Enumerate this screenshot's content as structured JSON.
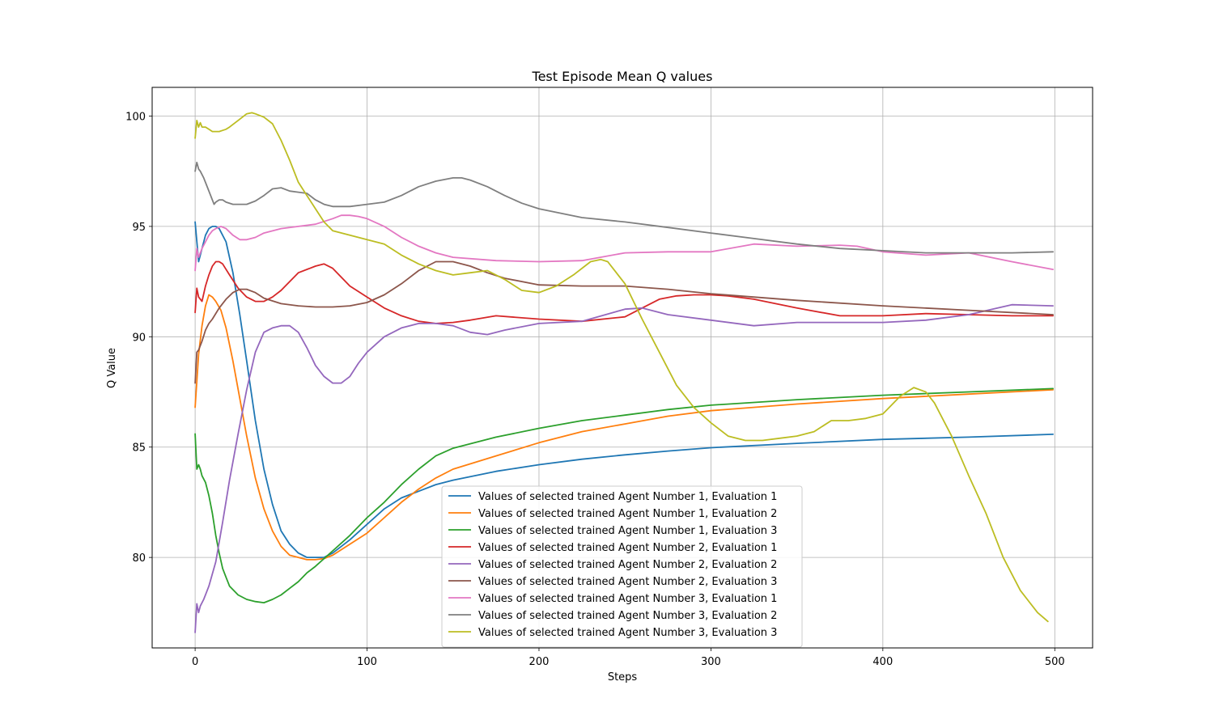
{
  "chart_data": {
    "type": "line",
    "title": "Test Episode Mean Q values",
    "xlabel": "Steps",
    "ylabel": "Q Value",
    "xlim": [
      -25,
      522
    ],
    "ylim": [
      75.9,
      101.3
    ],
    "xticks": [
      0,
      100,
      200,
      300,
      400,
      500
    ],
    "yticks": [
      80,
      85,
      90,
      95,
      100
    ],
    "xtick_labels": [
      "0",
      "100",
      "200",
      "300",
      "400",
      "500"
    ],
    "ytick_labels": [
      "80",
      "85",
      "90",
      "95",
      "100"
    ],
    "grid": true,
    "legend_position": "lower-center",
    "series": [
      {
        "name": "Values of selected trained Agent Number 1, Evaluation 1",
        "color": "#1f77b4",
        "x": [
          0,
          2,
          4,
          6,
          8,
          10,
          12,
          14,
          18,
          22,
          26,
          30,
          35,
          40,
          45,
          50,
          55,
          60,
          65,
          70,
          75,
          80,
          90,
          100,
          110,
          120,
          130,
          140,
          150,
          175,
          200,
          225,
          250,
          275,
          300,
          350,
          400,
          450,
          499
        ],
        "y": [
          95.2,
          93.4,
          94.0,
          94.6,
          94.9,
          95.0,
          95.0,
          94.9,
          94.3,
          92.9,
          91.0,
          88.9,
          86.2,
          84.0,
          82.4,
          81.2,
          80.6,
          80.2,
          80.0,
          80.0,
          80.0,
          80.2,
          80.8,
          81.5,
          82.2,
          82.7,
          83.0,
          83.3,
          83.5,
          83.9,
          84.2,
          84.45,
          84.65,
          84.82,
          84.97,
          85.17,
          85.35,
          85.45,
          85.58
        ]
      },
      {
        "name": "Values of selected trained Agent Number 1, Evaluation 2",
        "color": "#ff7f0e",
        "x": [
          0,
          2,
          4,
          6,
          8,
          10,
          12,
          15,
          18,
          22,
          26,
          30,
          35,
          40,
          45,
          50,
          55,
          60,
          65,
          70,
          75,
          80,
          90,
          100,
          110,
          120,
          130,
          140,
          150,
          175,
          200,
          225,
          250,
          275,
          300,
          350,
          400,
          450,
          499
        ],
        "y": [
          86.8,
          89.2,
          90.5,
          91.4,
          91.9,
          91.8,
          91.6,
          91.2,
          90.4,
          88.9,
          87.2,
          85.5,
          83.6,
          82.2,
          81.2,
          80.5,
          80.1,
          80.0,
          79.9,
          79.9,
          79.95,
          80.1,
          80.6,
          81.1,
          81.8,
          82.5,
          83.1,
          83.6,
          84.0,
          84.6,
          85.2,
          85.7,
          86.05,
          86.4,
          86.65,
          86.95,
          87.2,
          87.4,
          87.6
        ]
      },
      {
        "name": "Values of selected trained Agent Number 1, Evaluation 3",
        "color": "#2ca02c",
        "x": [
          0,
          1,
          2,
          3,
          4,
          6,
          8,
          10,
          12,
          14,
          16,
          18,
          20,
          25,
          30,
          35,
          40,
          45,
          50,
          55,
          60,
          65,
          70,
          80,
          90,
          100,
          110,
          120,
          130,
          140,
          150,
          175,
          200,
          225,
          250,
          275,
          300,
          350,
          400,
          450,
          499
        ],
        "y": [
          85.6,
          84.0,
          84.2,
          84.0,
          83.7,
          83.4,
          82.8,
          82.0,
          81.0,
          80.2,
          79.5,
          79.1,
          78.7,
          78.3,
          78.1,
          78.0,
          77.95,
          78.1,
          78.3,
          78.6,
          78.9,
          79.3,
          79.6,
          80.3,
          81.0,
          81.8,
          82.5,
          83.3,
          84.0,
          84.6,
          84.95,
          85.45,
          85.85,
          86.2,
          86.45,
          86.7,
          86.9,
          87.15,
          87.35,
          87.5,
          87.65
        ]
      },
      {
        "name": "Values of selected trained Agent Number 2, Evaluation 1",
        "color": "#d62728",
        "x": [
          0,
          1,
          2,
          4,
          6,
          8,
          10,
          12,
          14,
          16,
          20,
          25,
          30,
          35,
          40,
          45,
          50,
          60,
          70,
          75,
          80,
          90,
          100,
          110,
          120,
          130,
          140,
          150,
          160,
          175,
          200,
          225,
          250,
          260,
          270,
          280,
          290,
          300,
          310,
          325,
          350,
          375,
          400,
          425,
          450,
          475,
          499
        ],
        "y": [
          91.1,
          92.2,
          91.8,
          91.6,
          92.3,
          92.8,
          93.2,
          93.4,
          93.4,
          93.3,
          92.8,
          92.2,
          91.8,
          91.6,
          91.6,
          91.8,
          92.1,
          92.9,
          93.2,
          93.3,
          93.1,
          92.3,
          91.8,
          91.3,
          90.95,
          90.7,
          90.6,
          90.65,
          90.75,
          90.95,
          90.8,
          90.7,
          90.9,
          91.3,
          91.7,
          91.85,
          91.9,
          91.9,
          91.85,
          91.7,
          91.3,
          90.95,
          90.95,
          91.05,
          91.0,
          90.95,
          90.95
        ]
      },
      {
        "name": "Values of selected trained Agent Number 2, Evaluation 2",
        "color": "#9467bd",
        "x": [
          0,
          1,
          2,
          3,
          5,
          8,
          12,
          16,
          20,
          25,
          30,
          35,
          40,
          45,
          50,
          55,
          60,
          65,
          70,
          75,
          80,
          85,
          90,
          95,
          100,
          110,
          120,
          130,
          140,
          150,
          160,
          170,
          180,
          200,
          225,
          250,
          260,
          275,
          300,
          325,
          350,
          375,
          400,
          425,
          450,
          475,
          499
        ],
        "y": [
          76.6,
          77.9,
          77.5,
          77.8,
          78.1,
          78.7,
          79.8,
          81.6,
          83.5,
          85.6,
          87.6,
          89.3,
          90.2,
          90.4,
          90.5,
          90.5,
          90.2,
          89.5,
          88.7,
          88.2,
          87.9,
          87.9,
          88.2,
          88.8,
          89.3,
          90.0,
          90.4,
          90.6,
          90.6,
          90.5,
          90.2,
          90.1,
          90.3,
          90.6,
          90.7,
          91.25,
          91.3,
          91.0,
          90.75,
          90.5,
          90.65,
          90.65,
          90.65,
          90.75,
          91.0,
          91.45,
          91.4
        ]
      },
      {
        "name": "Values of selected trained Agent Number 2, Evaluation 3",
        "color": "#8c564b",
        "x": [
          0,
          1,
          2,
          4,
          6,
          8,
          10,
          14,
          18,
          22,
          26,
          30,
          35,
          40,
          50,
          60,
          70,
          80,
          90,
          100,
          110,
          120,
          130,
          140,
          150,
          160,
          170,
          180,
          200,
          225,
          250,
          275,
          300,
          350,
          400,
          450,
          499
        ],
        "y": [
          87.9,
          89.3,
          89.4,
          89.8,
          90.3,
          90.6,
          90.8,
          91.3,
          91.7,
          92.0,
          92.15,
          92.15,
          92.0,
          91.75,
          91.5,
          91.4,
          91.35,
          91.35,
          91.4,
          91.55,
          91.9,
          92.4,
          93.0,
          93.4,
          93.4,
          93.2,
          92.9,
          92.65,
          92.35,
          92.3,
          92.3,
          92.15,
          91.95,
          91.65,
          91.4,
          91.2,
          91.0
        ]
      },
      {
        "name": "Values of selected trained Agent Number 3, Evaluation 1",
        "color": "#e377c2",
        "x": [
          0,
          1,
          2,
          4,
          6,
          8,
          10,
          12,
          15,
          18,
          22,
          26,
          30,
          35,
          40,
          50,
          60,
          70,
          80,
          85,
          90,
          95,
          100,
          110,
          120,
          130,
          140,
          150,
          175,
          200,
          225,
          250,
          275,
          300,
          325,
          350,
          375,
          385,
          400,
          425,
          450,
          475,
          499
        ],
        "y": [
          93.0,
          94.0,
          93.6,
          94.0,
          94.3,
          94.6,
          94.8,
          94.9,
          95.0,
          94.9,
          94.6,
          94.4,
          94.4,
          94.5,
          94.7,
          94.9,
          95.0,
          95.1,
          95.35,
          95.5,
          95.5,
          95.45,
          95.35,
          95.0,
          94.5,
          94.1,
          93.8,
          93.6,
          93.45,
          93.4,
          93.45,
          93.8,
          93.85,
          93.85,
          94.2,
          94.1,
          94.15,
          94.1,
          93.85,
          93.7,
          93.8,
          93.4,
          93.05
        ]
      },
      {
        "name": "Values of selected trained Agent Number 3, Evaluation 2",
        "color": "#7f7f7f",
        "x": [
          0,
          1,
          2,
          3,
          5,
          8,
          11,
          12,
          14,
          16,
          18,
          22,
          26,
          30,
          35,
          40,
          45,
          50,
          55,
          60,
          65,
          70,
          75,
          80,
          90,
          100,
          110,
          120,
          130,
          140,
          150,
          155,
          160,
          170,
          180,
          190,
          200,
          225,
          250,
          275,
          300,
          325,
          350,
          375,
          400,
          425,
          450,
          475,
          499
        ],
        "y": [
          97.5,
          97.9,
          97.6,
          97.5,
          97.2,
          96.6,
          96.0,
          96.1,
          96.2,
          96.2,
          96.1,
          96.0,
          96.0,
          96.0,
          96.15,
          96.4,
          96.7,
          96.75,
          96.6,
          96.55,
          96.5,
          96.2,
          96.0,
          95.9,
          95.9,
          96.0,
          96.1,
          96.4,
          96.8,
          97.05,
          97.2,
          97.2,
          97.1,
          96.8,
          96.4,
          96.05,
          95.8,
          95.4,
          95.2,
          94.95,
          94.7,
          94.45,
          94.2,
          94.0,
          93.9,
          93.8,
          93.8,
          93.8,
          93.85
        ]
      },
      {
        "name": "Values of selected trained Agent Number 3, Evaluation 3",
        "color": "#bcbd22",
        "x": [
          0,
          1,
          2,
          3,
          4,
          6,
          8,
          10,
          12,
          14,
          16,
          18,
          20,
          25,
          30,
          33,
          35,
          40,
          45,
          50,
          55,
          60,
          65,
          70,
          75,
          80,
          90,
          100,
          110,
          120,
          130,
          140,
          150,
          160,
          170,
          180,
          190,
          200,
          210,
          220,
          230,
          236,
          240,
          250,
          260,
          270,
          280,
          290,
          300,
          310,
          320,
          330,
          340,
          350,
          360,
          370,
          380,
          390,
          400,
          410,
          418,
          425,
          430,
          440,
          450,
          460,
          470,
          480,
          490,
          496
        ],
        "y": [
          99.0,
          99.8,
          99.5,
          99.7,
          99.5,
          99.5,
          99.4,
          99.3,
          99.3,
          99.3,
          99.35,
          99.4,
          99.5,
          99.8,
          100.1,
          100.15,
          100.1,
          99.95,
          99.65,
          98.9,
          98.0,
          97.0,
          96.4,
          95.8,
          95.2,
          94.8,
          94.6,
          94.4,
          94.2,
          93.7,
          93.3,
          93.0,
          92.8,
          92.9,
          93.0,
          92.6,
          92.1,
          92.0,
          92.3,
          92.8,
          93.4,
          93.5,
          93.4,
          92.4,
          90.8,
          89.3,
          87.8,
          86.8,
          86.1,
          85.5,
          85.3,
          85.3,
          85.4,
          85.5,
          85.7,
          86.2,
          86.2,
          86.3,
          86.5,
          87.3,
          87.7,
          87.5,
          87.0,
          85.5,
          83.7,
          82.0,
          80.0,
          78.5,
          77.5,
          77.1
        ]
      }
    ]
  }
}
